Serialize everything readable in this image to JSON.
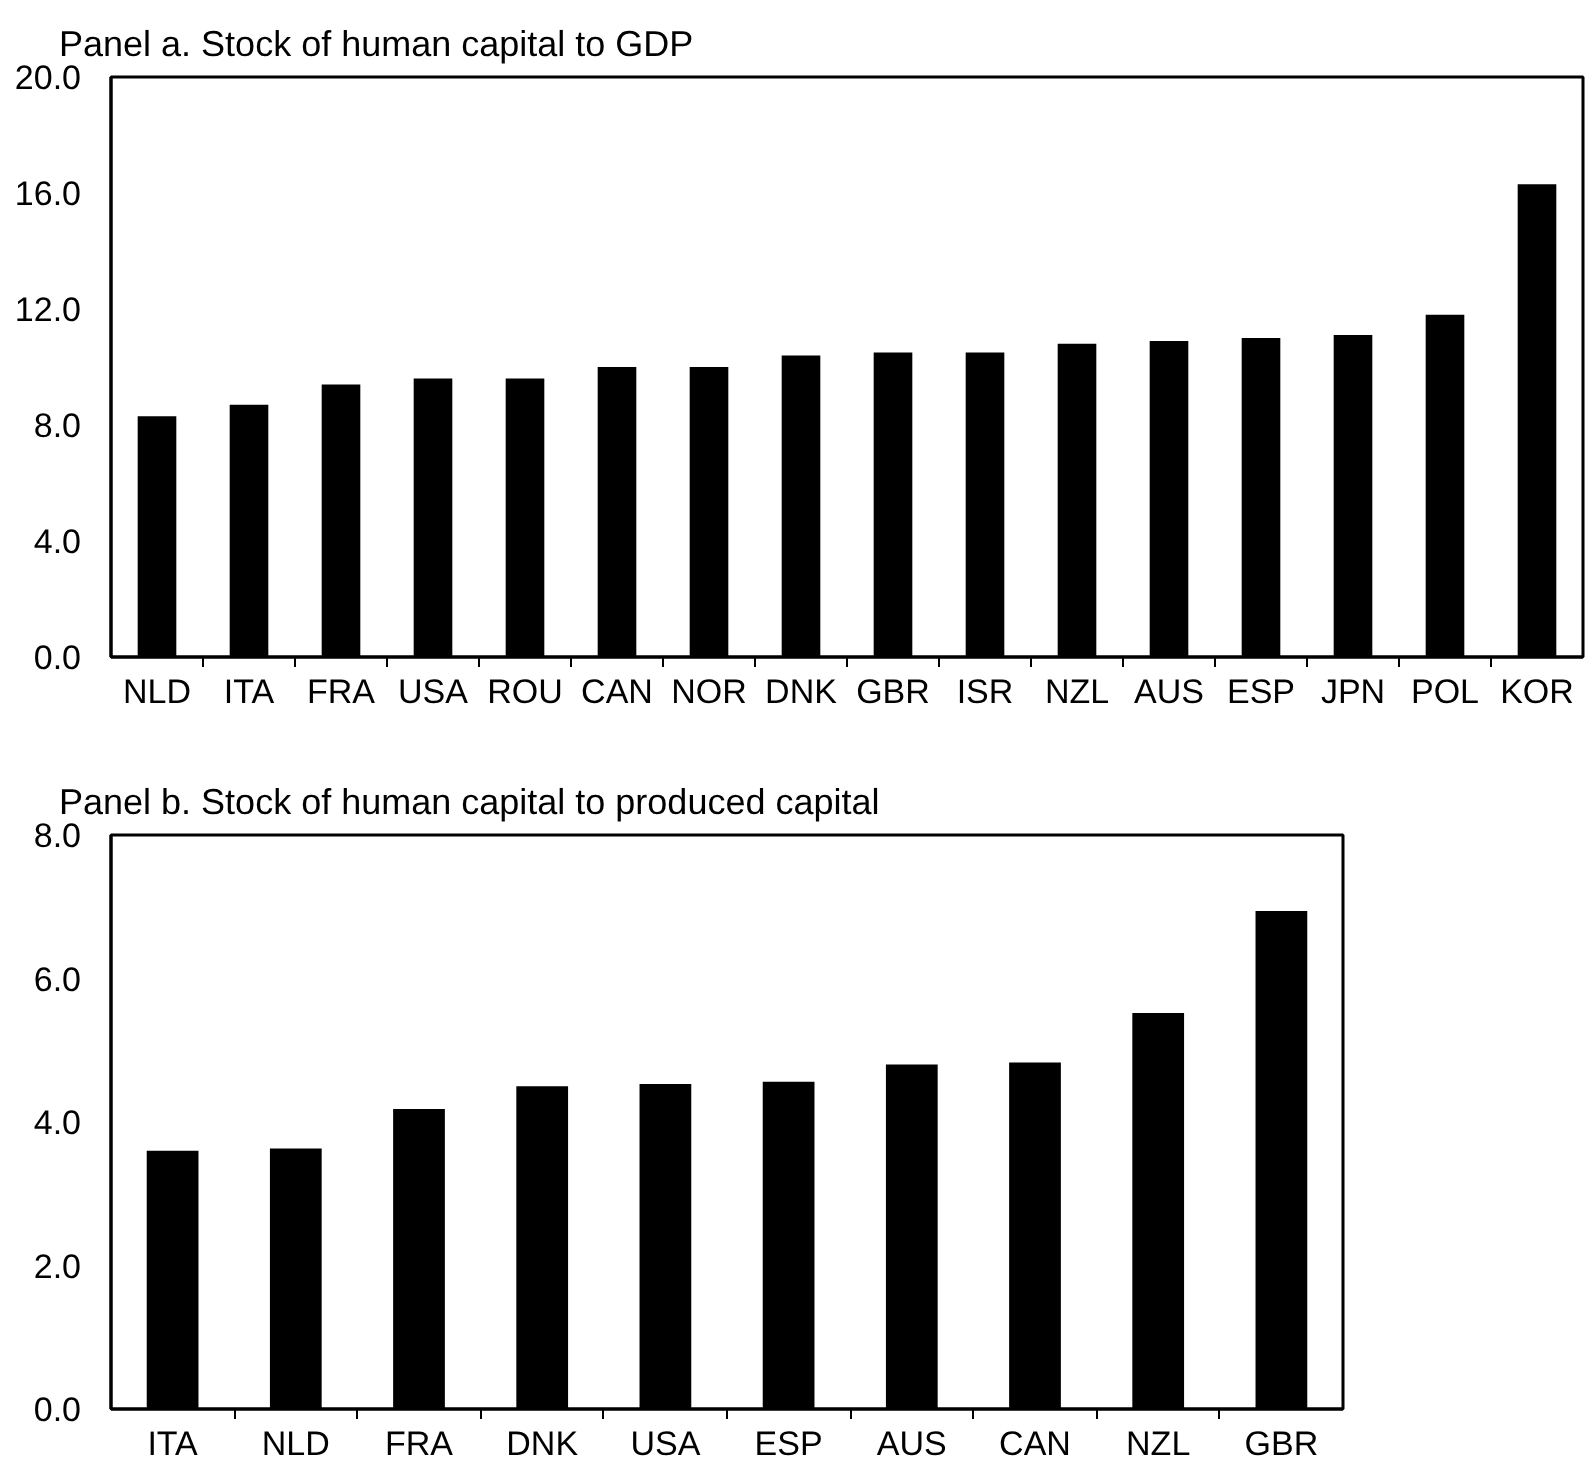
{
  "chart_data": [
    {
      "type": "bar",
      "title": "Panel a. Stock of human capital to GDP",
      "categories": [
        "NLD",
        "ITA",
        "FRA",
        "USA",
        "ROU",
        "CAN",
        "NOR",
        "DNK",
        "GBR",
        "ISR",
        "NZL",
        "AUS",
        "ESP",
        "JPN",
        "POL",
        "KOR"
      ],
      "values": [
        8.3,
        8.7,
        9.4,
        9.6,
        9.6,
        10.0,
        10.0,
        10.4,
        10.5,
        10.5,
        10.8,
        10.9,
        11.0,
        11.1,
        11.8,
        16.3
      ],
      "color": "#000000",
      "ylim": [
        0,
        20
      ],
      "yticks": [
        {
          "value": 0,
          "label": "0.0"
        },
        {
          "value": 4,
          "label": "4.0"
        },
        {
          "value": 8,
          "label": "8.0"
        },
        {
          "value": 12,
          "label": "12.0"
        },
        {
          "value": 16,
          "label": "16.0"
        },
        {
          "value": 20,
          "label": "20.0"
        }
      ]
    },
    {
      "type": "bar",
      "title": "Panel b. Stock of human capital to produced capital",
      "categories": [
        "ITA",
        "NLD",
        "FRA",
        "DNK",
        "USA",
        "ESP",
        "AUS",
        "CAN",
        "NZL",
        "GBR"
      ],
      "values": [
        3.6,
        3.63,
        4.18,
        4.5,
        4.53,
        4.56,
        4.8,
        4.83,
        5.52,
        6.94
      ],
      "color": "#000000",
      "ylim": [
        0,
        8
      ],
      "yticks": [
        {
          "value": 0,
          "label": "0.0"
        },
        {
          "value": 2,
          "label": "2.0"
        },
        {
          "value": 4,
          "label": "4.0"
        },
        {
          "value": 6,
          "label": "6.0"
        },
        {
          "value": 8,
          "label": "8.0"
        }
      ]
    }
  ]
}
